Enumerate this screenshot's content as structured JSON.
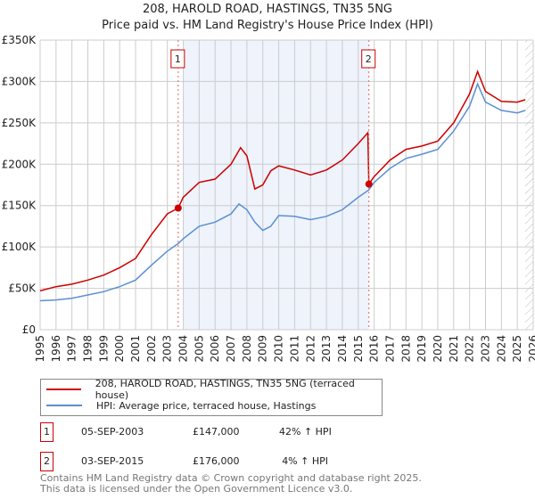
{
  "title": "208, HAROLD ROAD, HASTINGS, TN35 5NG",
  "subtitle": "Price paid vs. HM Land Registry's House Price Index (HPI)",
  "colors": {
    "property": "#cc0000",
    "hpi": "#5b8fd4",
    "shade": "#eef3fc",
    "grid": "#cccccc"
  },
  "chart_data": {
    "type": "line",
    "title": "208, HAROLD ROAD, HASTINGS, TN35 5NG",
    "xlim": [
      1995,
      2026
    ],
    "ylim": [
      0,
      350000
    ],
    "xticks": [
      "1995",
      "1996",
      "1997",
      "1998",
      "1999",
      "2000",
      "2001",
      "2002",
      "2003",
      "2004",
      "2005",
      "2006",
      "2007",
      "2008",
      "2009",
      "2010",
      "2011",
      "2012",
      "2013",
      "2014",
      "2015",
      "2016",
      "2017",
      "2018",
      "2019",
      "2020",
      "2021",
      "2022",
      "2023",
      "2024",
      "2025",
      "2026"
    ],
    "yticks": [
      {
        "v": 0,
        "label": "£0"
      },
      {
        "v": 50000,
        "label": "£50K"
      },
      {
        "v": 100000,
        "label": "£100K"
      },
      {
        "v": 150000,
        "label": "£150K"
      },
      {
        "v": 200000,
        "label": "£200K"
      },
      {
        "v": 250000,
        "label": "£250K"
      },
      {
        "v": 300000,
        "label": "£300K"
      },
      {
        "v": 350000,
        "label": "£350K"
      }
    ],
    "grid": true,
    "shaded_range": [
      2004.0,
      2015.67
    ],
    "hatched_from": 2025.5,
    "series": [
      {
        "name": "208, HAROLD ROAD, HASTINGS, TN35 5NG (terraced house)",
        "x": [
          1995,
          1996,
          1997,
          1998,
          1999,
          2000,
          2001,
          2002,
          2003,
          2003.68,
          2004,
          2005,
          2006,
          2007,
          2007.6,
          2008,
          2008.5,
          2009,
          2009.5,
          2010,
          2011,
          2012,
          2013,
          2014,
          2015,
          2015.6,
          2015.67,
          2016,
          2017,
          2018,
          2019,
          2020,
          2021,
          2022,
          2022.5,
          2023,
          2024,
          2025,
          2025.5
        ],
        "values": [
          47000,
          52000,
          55000,
          60000,
          66000,
          75000,
          86000,
          115000,
          140000,
          147000,
          160000,
          178000,
          182000,
          200000,
          220000,
          210000,
          170000,
          175000,
          192000,
          198000,
          193000,
          187000,
          193000,
          205000,
          225000,
          238000,
          176000,
          185000,
          205000,
          218000,
          222000,
          228000,
          250000,
          285000,
          312000,
          288000,
          276000,
          275000,
          278000
        ]
      },
      {
        "name": "HPI: Average price, terraced house, Hastings",
        "x": [
          1995,
          1996,
          1997,
          1998,
          1999,
          2000,
          2001,
          2002,
          2003,
          2003.68,
          2004,
          2005,
          2006,
          2007,
          2007.5,
          2008,
          2008.5,
          2009,
          2009.5,
          2010,
          2011,
          2012,
          2013,
          2014,
          2015,
          2015.67,
          2016,
          2017,
          2018,
          2019,
          2020,
          2021,
          2022,
          2022.5,
          2023,
          2024,
          2025,
          2025.5
        ],
        "values": [
          35000,
          36000,
          38000,
          42000,
          46000,
          52000,
          60000,
          78000,
          95000,
          104000,
          110000,
          125000,
          130000,
          140000,
          152000,
          145000,
          130000,
          120000,
          125000,
          138000,
          137000,
          133000,
          137000,
          145000,
          160000,
          169000,
          178000,
          195000,
          207000,
          212000,
          218000,
          240000,
          270000,
          297000,
          275000,
          265000,
          262000,
          265000
        ]
      }
    ],
    "annotations": [
      {
        "label": "1",
        "x": 2003.68,
        "y": 147000
      },
      {
        "label": "2",
        "x": 2015.67,
        "y": 176000
      }
    ]
  },
  "legend": {
    "property": "208, HAROLD ROAD, HASTINGS, TN35 5NG (terraced house)",
    "hpi": "HPI: Average price, terraced house, Hastings"
  },
  "sales": [
    {
      "num": "1",
      "date": "05-SEP-2003",
      "price": "£147,000",
      "hpi": "42% ↑ HPI"
    },
    {
      "num": "2",
      "date": "03-SEP-2015",
      "price": "£176,000",
      "hpi": "4% ↑ HPI"
    }
  ],
  "footer": {
    "line1": "Contains HM Land Registry data © Crown copyright and database right 2025.",
    "line2": "This data is licensed under the Open Government Licence v3.0."
  }
}
